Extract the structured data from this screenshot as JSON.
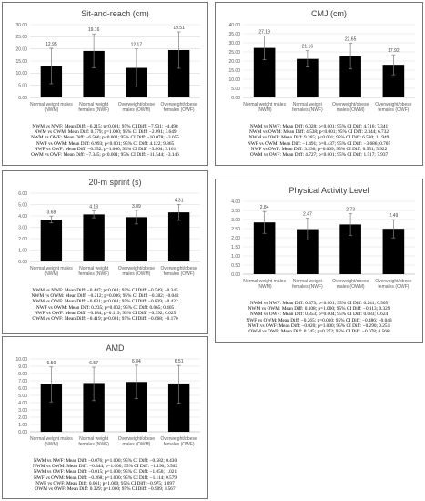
{
  "chart_data": [
    {
      "type": "bar",
      "title": "Sit-and-reach (cm)",
      "categories": [
        "Normal weight males (NWM)",
        "Normal weight females (NWF)",
        "Overweight/obese males (OWM)",
        "Overweight/obese females (OWF)"
      ],
      "category_lines": [
        [
          "Normal weight males",
          "(NWM)"
        ],
        [
          "Normal weight",
          "females (NWF)"
        ],
        [
          "Overweight/obese",
          "males (OWM)"
        ],
        [
          "Overweight/obese",
          "females (OWF)"
        ]
      ],
      "values": [
        12.95,
        19.16,
        12.17,
        19.51
      ],
      "value_labels": [
        "12.95",
        "19.16",
        "12.17",
        "19.51"
      ],
      "errors": [
        7.3,
        7.0,
        7.8,
        7.5
      ],
      "ylim": [
        0,
        30
      ],
      "ytick_step": 5,
      "ytick_labels": [
        "0.00",
        "5.00",
        "10.00",
        "15.00",
        "20.00",
        "25.00",
        "30.00"
      ],
      "grid": true,
      "bar_color": "#000000",
      "stats": [
        "NWM vs NWF: Mean Diff: −6.215; p<0.001; 95% CI Diff: −7.931; −4.498",
        "NWM vs OWM: Mean Diff: 0.779; p=1.000; 95% CI Diff: −2.091; 3.649",
        "NWM vs OWF: Mean Diff: −6.566; p<0.001; 95% CI Diff: −10.078; −3.055",
        "NWF vs OWM: Mean Diff: 6.993; p<0.001; 95% CI Diff: 4.122; 9.865",
        "NWF vs OWF: Mean Diff: −0.352; p=1.000; 95% CI Diff: −3.864; 3.161",
        "OWM vs OWF: Mean Diff: −7.345; p<0.001; 95% CI Diff: −11.544; −3.146"
      ]
    },
    {
      "type": "bar",
      "title": "CMJ (cm)",
      "categories": [
        "Normal weight males (NWM)",
        "Normal weight females (NWF)",
        "Overweight/obese males (OWM)",
        "Overweight/obese females (OWF)"
      ],
      "category_lines": [
        [
          "Normal weight males",
          "(NWM)"
        ],
        [
          "Normal weight",
          "females (NWF)"
        ],
        [
          "Overweight/obese",
          "males (OWM)"
        ],
        [
          "Overweight/obese",
          "females (OWF)"
        ]
      ],
      "values": [
        27.19,
        21.16,
        22.65,
        17.92
      ],
      "value_labels": [
        "27.19",
        "21.16",
        "22.65",
        "17.92"
      ],
      "errors": [
        6.5,
        4.5,
        7.0,
        5.5
      ],
      "ylim": [
        0,
        40
      ],
      "ytick_step": 5,
      "ytick_labels": [
        "0.00",
        "5.00",
        "10.00",
        "15.00",
        "20.00",
        "25.00",
        "30.00",
        "35.00",
        "40.00"
      ],
      "grid": true,
      "bar_color": "#000000",
      "stats": [
        "NWM vs NWF: Mean Diff: 6.028; p<0.001; 95% CI Diff: 4.716; 7.341",
        "NWM vs OWM: Mean Diff: 4.538; p<0.001; 95% CI Diff: 2.344; 6.732",
        "NWM vs OWF: Mean Diff: 9.265; p<0.001; 95% CI Diff: 6.580; 11.949",
        "NWF vs OWM: Mean Diff: −1.491; p=0.437; 95% CI Diff: −3.686; 0.705",
        "NWF vs OWF: Mean Diff: 3.236; p=0.009; 95% CI Diff: 0.551; 5.922",
        "OWM vs OWF: Mean Diff: 4.727; p<0.001; 95% CI Diff: 1.517; 7.937"
      ]
    },
    {
      "type": "bar",
      "title": "20-m sprint (s)",
      "categories": [
        "Normal weight males (NWM)",
        "Normal weight females (NWF)",
        "Overweight/obese males (OWM)",
        "Overweight/obese females (OWF)"
      ],
      "category_lines": [
        [
          "Normal weight males",
          "(NWM)"
        ],
        [
          "Normal weight",
          "females (NWF)"
        ],
        [
          "Overweight/obese",
          "males (OWM)"
        ],
        [
          "Overweight/obese",
          "females (OWF)"
        ]
      ],
      "values": [
        3.68,
        4.13,
        3.89,
        4.31
      ],
      "value_labels": [
        "3.68",
        "4.13",
        "3.89",
        "4.31"
      ],
      "errors": [
        0.3,
        0.3,
        0.6,
        0.7
      ],
      "ylim": [
        0,
        6
      ],
      "ytick_step": 1,
      "ytick_labels": [
        "0.00",
        "1.00",
        "2.00",
        "3.00",
        "4.00",
        "5.00",
        "6.00"
      ],
      "grid": true,
      "bar_color": "#000000",
      "stats": [
        "NWM vs NWF: Mean Diff: −0.447; p<0.001; 95% CI Diff: −0.549; −0.345",
        "NWM vs OWM: Mean Diff: −0.212; p=0.006; 95% CI Diff: −0.382; −0.042",
        "NWM vs OWF: Mean Diff: −0.631; p<0.001; 95% CI Diff: −0.839; −0.422",
        "NWF vs OWM: Mean Diff: 0.235; p=0.002; 95% CI Diff: 0.065; 0.405",
        "NWF vs OWF: Mean Diff: −0.184; p=0.119; 95% CI Diff: −0.392; 0.025",
        "OWM vs OWF: Mean Diff: −0.419; p=0.001; 95% CI Diff: −0.668; −0.170"
      ]
    },
    {
      "type": "bar",
      "title": "Physical Activity Level",
      "categories": [
        "Normal weight males (NWM)",
        "Normal weight females (NWF)",
        "Overweight/obese males (OWM)",
        "Overweight/obese females (OWF)"
      ],
      "category_lines": [
        [
          "Normal weight males",
          "(NWM)"
        ],
        [
          "Normal weight",
          "females (NWF)"
        ],
        [
          "Overweight/obese",
          "males (OWM)"
        ],
        [
          "Overweight/obese",
          "females (OWF)"
        ]
      ],
      "values": [
        2.84,
        2.47,
        2.73,
        2.49
      ],
      "value_labels": [
        "2.84",
        "2.47",
        "2.73",
        "2.49"
      ],
      "errors": [
        0.6,
        0.6,
        0.6,
        0.5
      ],
      "ylim": [
        0,
        4
      ],
      "ytick_step": 0.5,
      "ytick_labels": [
        "0.00",
        "0.50",
        "1.00",
        "1.50",
        "2.00",
        "2.50",
        "3.00",
        "3.50",
        "4.00"
      ],
      "grid": true,
      "bar_color": "#000000",
      "stats": [
        "NWM vs NWF: Mean Diff: 0.373; p<0.001; 95% CI Diff: 0.241; 0.505",
        "NWM vs OWM: Mean Diff: 0.108; p=1.000; 95% CI Diff: −0.113; 0.329",
        "NWM vs OWF: Mean Diff: 0.353; p=0.004; 95% CI Diff: 0.083; 0.624",
        "NWF vs OWM: Mean Diff: −0.265; p=0.010; 95% CI Diff: −0.486; −0.043",
        "NWF vs OWF: Mean Diff: −0.020; p=1.000; 95% CI Diff: −0.290; 0.251",
        "OWM vs OWF: Mean Diff: 0.245; p=0.272; 95% CI Diff: −0.078; 0.568"
      ]
    },
    {
      "type": "bar",
      "title": "AMD",
      "categories": [
        "Normal weight males (NWM)",
        "Normal weight females (NWF)",
        "Overweight/obese males (OWM)",
        "Overweight/obese females (OWF)"
      ],
      "category_lines": [
        [
          "Normal weight males",
          "(NWM)"
        ],
        [
          "Normal weight",
          "females (NWF)"
        ],
        [
          "Overweight/obese",
          "males (OWM)"
        ],
        [
          "Overweight/obese",
          "females (OWF)"
        ]
      ],
      "values": [
        6.5,
        6.57,
        6.84,
        6.51
      ],
      "value_labels": [
        "6.50",
        "6.57",
        "6.84",
        "6.51"
      ],
      "errors": [
        2.4,
        2.3,
        2.3,
        2.6
      ],
      "ylim": [
        0,
        10
      ],
      "ytick_step": 1,
      "ytick_labels": [
        "0.00",
        "1.00",
        "2.00",
        "3.00",
        "4.00",
        "5.00",
        "6.00",
        "7.00",
        "8.00",
        "9.00",
        "10.00"
      ],
      "grid": true,
      "bar_color": "#000000",
      "stats": [
        "NWM vs NWF: Mean Diff: −0.076; p=1.000; 95% CI Diff: −0.582; 0.430",
        "NWM vs OWM: Mean Diff: −0.344; p=1.000; 95% CI Diff: −1.190; 0.502",
        "NWM vs OWF: Mean Diff: −0.015; p=1.000; 95% CI Diff: −1.050; 1.021",
        "NWF vs OWM: Mean Diff: −0.268; p=1.000; 95% CI Diff: −1.114; 0.579",
        "NWF vs OWF: Mean Diff: 0.061; p=1.000; 95% CI Diff: −0.975; 1.097",
        "OWM vs OWF: Mean Diff: 0.329; p=1.000; 95% CI Diff: −0.909; 1.567"
      ]
    }
  ]
}
